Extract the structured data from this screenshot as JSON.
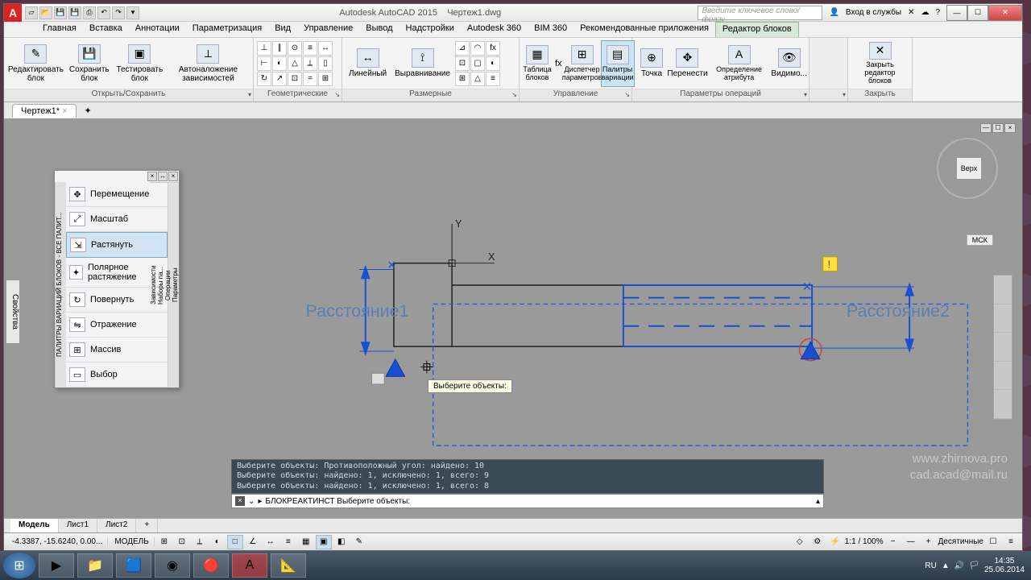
{
  "app": {
    "name": "Autodesk AutoCAD 2015",
    "document": "Чертеж1.dwg",
    "search_placeholder": "Введите ключевое слово/фразу",
    "signin": "Вход в службы"
  },
  "ribbon_tabs": [
    "Главная",
    "Вставка",
    "Аннотации",
    "Параметризация",
    "Вид",
    "Управление",
    "Вывод",
    "Надстройки",
    "Autodesk 360",
    "BIM 360",
    "Рекомендованные приложения",
    "Редактор блоков"
  ],
  "ribbon_active_tab": "Редактор блоков",
  "ribbon_panels": {
    "p1": {
      "label": "Открыть/Сохранить",
      "items": [
        "Редактировать блок",
        "Сохранить блок",
        "Тестировать блок",
        "Автоналожение зависимостей"
      ]
    },
    "p2": {
      "label": "Геометрические"
    },
    "p3": {
      "label": "Размерные",
      "items": [
        "Линейный",
        "Выравнивание"
      ]
    },
    "p4": {
      "label": "Управление",
      "items": [
        "Таблица блоков",
        "Диспетчер параметров",
        "Палитры вариации"
      ],
      "active": 2
    },
    "p5": {
      "label": "Параметры операций",
      "items": [
        "Точка",
        "Перенести",
        "Определение атрибута",
        "Видимо..."
      ]
    },
    "p6": {
      "label": "Закрыть",
      "items": [
        "Закрыть редактор блоков"
      ]
    }
  },
  "doc_tab": "Чертеж1*",
  "properties_tab": "Свойства",
  "palette": {
    "side_label": "ПАЛИТРЫ ВАРИАЦИЙ БЛОКОВ - ВСЕ ПАЛИТ...",
    "items": [
      "Перемещение",
      "Масштаб",
      "Растянуть",
      "Полярное растяжение",
      "Повернуть",
      "Отражение",
      "Массив",
      "Выбор"
    ],
    "selected": 2,
    "rtabs": [
      "Параметры",
      "Операции",
      "Наборы па...",
      "Зависимости"
    ]
  },
  "drawing": {
    "label1": "Расстояние1",
    "label2": "Расстояние2",
    "label_color": "#5b7fb8",
    "blue": "#1a4fd0",
    "dash_blue": "#2a5fd8",
    "black": "#202020",
    "tooltip": "Выберите объекты:",
    "axis_x": "X",
    "axis_y": "Y"
  },
  "viewcube": {
    "face": "Верх",
    "mck": "МСК"
  },
  "watermark": {
    "line1": "www.zhirnova.pro",
    "line2": "cad.acad@mail.ru"
  },
  "cmd": {
    "history": [
      "Выберите объекты: Противоположный угол: найдено: 10",
      "Выберите объекты: найдено: 1, исключено: 1, всего: 9",
      "Выберите объекты: найдено: 1, исключено: 1, всего: 8"
    ],
    "prompt": "БЛОКРЕАКТИНСТ Выберите объекты:"
  },
  "model_tabs": [
    "Модель",
    "Лист1",
    "Лист2"
  ],
  "status": {
    "coords": "-4.3387, -15.6240, 0.00...",
    "mode": "МОДЕЛЬ",
    "scale": "1:1 / 100%",
    "units": "Десятичные"
  },
  "taskbar": {
    "lang": "RU",
    "time": "14:35",
    "date": "25.06.2014"
  }
}
